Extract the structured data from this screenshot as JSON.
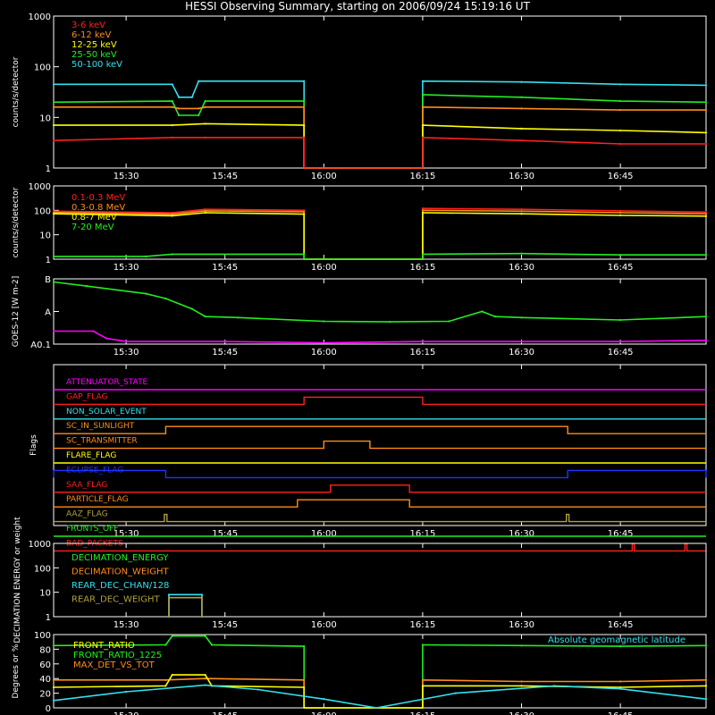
{
  "title": "HESSI Observing Summary, starting on 2006/09/24 15:19:16 UT",
  "time_ticks": [
    "15:30",
    "15:45",
    "16:00",
    "16:15",
    "16:30",
    "16:45"
  ],
  "colors": {
    "bg": "#000000",
    "axis": "#ffffff",
    "red": "#ff2020",
    "orange": "#ff8c1a",
    "yellow": "#ffff00",
    "green": "#22ee22",
    "cyan": "#33e0ee",
    "magenta": "#ff00ff",
    "blue": "#2233ff",
    "olive": "#b0a040"
  },
  "chart_data": [
    {
      "type": "line",
      "id": "lo-energy",
      "ylabel": "counts/s/detector",
      "y_scale": "log",
      "ylim": [
        1,
        1000
      ],
      "yticks": [
        "1",
        "10",
        "100",
        "1000"
      ],
      "legend": [
        {
          "name": "3-6 keV",
          "color": "red"
        },
        {
          "name": "6-12 keV",
          "color": "orange"
        },
        {
          "name": "12-25 keV",
          "color": "yellow"
        },
        {
          "name": "25-50 keV",
          "color": "green"
        },
        {
          "name": "50-100 keV",
          "color": "cyan"
        }
      ],
      "gaps": [
        [
          "15:57",
          "16:15"
        ]
      ],
      "series": [
        {
          "name": "50-100 keV",
          "color": "cyan",
          "x": [
            "15:19",
            "15:37",
            "15:38",
            "15:40",
            "15:41",
            "15:57",
            "16:15",
            "16:30",
            "16:45",
            "16:58"
          ],
          "values": [
            45,
            45,
            25,
            25,
            52,
            52,
            52,
            50,
            45,
            43
          ]
        },
        {
          "name": "25-50 keV",
          "color": "green",
          "x": [
            "15:19",
            "15:37",
            "15:38",
            "15:41",
            "15:42",
            "15:57",
            "16:15",
            "16:30",
            "16:45",
            "16:58"
          ],
          "values": [
            20,
            21,
            11,
            11,
            21,
            21,
            28,
            25,
            21,
            20
          ]
        },
        {
          "name": "6-12 keV",
          "color": "orange",
          "x": [
            "15:19",
            "15:37",
            "15:38",
            "15:41",
            "15:42",
            "15:57",
            "16:15",
            "16:30",
            "16:45",
            "16:58"
          ],
          "values": [
            16,
            16,
            15,
            15,
            16,
            16,
            16,
            15,
            14,
            14
          ]
        },
        {
          "name": "12-25 keV",
          "color": "yellow",
          "x": [
            "15:19",
            "15:37",
            "15:42",
            "15:57",
            "16:15",
            "16:30",
            "16:45",
            "16:58"
          ],
          "values": [
            7,
            7,
            7.5,
            7,
            7,
            6,
            5.5,
            5
          ]
        },
        {
          "name": "3-6 keV",
          "color": "red",
          "x": [
            "15:19",
            "15:37",
            "15:42",
            "15:57",
            "16:15",
            "16:30",
            "16:45",
            "16:58"
          ],
          "values": [
            3.5,
            4,
            4,
            4,
            4,
            3.5,
            3,
            3
          ]
        }
      ]
    },
    {
      "type": "line",
      "id": "hi-energy",
      "ylabel": "counts/s/detector",
      "y_scale": "log",
      "ylim": [
        1,
        1000
      ],
      "yticks": [
        "1",
        "10",
        "100",
        "1000"
      ],
      "legend": [
        {
          "name": "0.1-0.3 MeV",
          "color": "red"
        },
        {
          "name": "0.3-0.8 MeV",
          "color": "orange"
        },
        {
          "name": "0.8-7 MeV",
          "color": "yellow"
        },
        {
          "name": "7-20 MeV",
          "color": "green"
        }
      ],
      "gaps": [
        [
          "15:57",
          "16:15"
        ]
      ],
      "series": [
        {
          "name": "0.1-0.3 MeV",
          "color": "red",
          "x": [
            "15:19",
            "15:37",
            "15:42",
            "15:57",
            "16:15",
            "16:30",
            "16:45",
            "16:58"
          ],
          "values": [
            92,
            80,
            110,
            100,
            120,
            110,
            95,
            85
          ]
        },
        {
          "name": "0.3-0.8 MeV",
          "color": "orange",
          "x": [
            "15:19",
            "15:37",
            "15:42",
            "15:57",
            "16:15",
            "16:30",
            "16:45",
            "16:58"
          ],
          "values": [
            82,
            70,
            95,
            88,
            100,
            92,
            80,
            72
          ]
        },
        {
          "name": "0.8-7 MeV",
          "color": "yellow",
          "x": [
            "15:19",
            "15:37",
            "15:42",
            "15:57",
            "16:15",
            "16:30",
            "16:45",
            "16:58"
          ],
          "values": [
            72,
            60,
            80,
            70,
            80,
            72,
            62,
            58
          ]
        },
        {
          "name": "7-20 MeV",
          "color": "green",
          "x": [
            "15:19",
            "15:33",
            "15:37",
            "15:57",
            "16:15",
            "16:30",
            "16:45",
            "16:58"
          ],
          "values": [
            1.3,
            1.3,
            1.6,
            1.6,
            1.6,
            1.7,
            1.5,
            1.5
          ]
        }
      ]
    },
    {
      "type": "line",
      "id": "goes",
      "ylabel": "GOES-12 [W m-2]",
      "y_scale": "log",
      "ylim": [
        1e-08,
        1e-06
      ],
      "yticks": [
        "A0.1",
        "A",
        "B"
      ],
      "series": [
        {
          "name": "GOES long",
          "color": "green",
          "x": [
            "15:19",
            "15:24",
            "15:33",
            "15:36",
            "15:40",
            "15:42",
            "15:47",
            "16:00",
            "16:10",
            "16:19",
            "16:24",
            "16:26",
            "16:30",
            "16:45",
            "16:58"
          ],
          "values": [
            8e-07,
            6e-07,
            3.5e-07,
            2.5e-07,
            1.2e-07,
            7e-08,
            6.5e-08,
            5e-08,
            4.8e-08,
            5e-08,
            1e-07,
            7e-08,
            6.5e-08,
            5.5e-08,
            7e-08
          ]
        },
        {
          "name": "GOES short",
          "color": "magenta",
          "x": [
            "15:19",
            "15:25",
            "15:27",
            "15:30",
            "15:45",
            "16:00",
            "16:15",
            "16:30",
            "16:45",
            "16:58"
          ],
          "values": [
            2.5e-08,
            2.5e-08,
            1.5e-08,
            1.2e-08,
            1.2e-08,
            1.1e-08,
            1.2e-08,
            1.2e-08,
            1.2e-08,
            1.3e-08
          ]
        }
      ]
    },
    {
      "type": "line",
      "id": "flags",
      "ylabel": "Flags",
      "flags": [
        {
          "name": "ATTENUATOR_STATE",
          "color": "magenta",
          "on": []
        },
        {
          "name": "GAP_FLAG",
          "color": "red",
          "on": [
            [
              "15:57",
              "16:15"
            ]
          ]
        },
        {
          "name": "NON_SOLAR_EVENT",
          "color": "cyan",
          "on": []
        },
        {
          "name": "SC_IN_SUNLIGHT",
          "color": "orange",
          "on": [
            [
              "15:36",
              "16:37"
            ]
          ]
        },
        {
          "name": "SC_TRANSMITTER",
          "color": "orange",
          "on": [
            [
              "16:00",
              "16:07"
            ]
          ]
        },
        {
          "name": "FLARE_FLAG",
          "color": "yellow",
          "on": []
        },
        {
          "name": "ECLIPSE_FLAG",
          "color": "blue",
          "on": [
            [
              "15:19",
              "15:36"
            ],
            [
              "16:37",
              "16:58"
            ]
          ]
        },
        {
          "name": "SAA_FLAG",
          "color": "red",
          "on": [
            [
              "16:01",
              "16:13"
            ]
          ]
        },
        {
          "name": "PARTICLE_FLAG",
          "color": "orange",
          "on": [
            [
              "15:56",
              "16:13"
            ]
          ]
        },
        {
          "name": "AAZ_FLAG",
          "color": "olive",
          "on": [
            [
              "15:35.8",
              "15:36.2"
            ],
            [
              "16:36.8",
              "16:37.2"
            ]
          ]
        },
        {
          "name": "FRONTS_OFF",
          "color": "green",
          "on": []
        },
        {
          "name": "BAD_PACKETS",
          "color": "red",
          "on": [
            [
              "16:46.8",
              "16:47.1"
            ],
            [
              "16:54.8",
              "16:55.1"
            ]
          ]
        }
      ]
    },
    {
      "type": "line",
      "id": "decimation",
      "ylabel": "DECIMATION ENERGY or weight",
      "y_scale": "log",
      "ylim": [
        1,
        1000
      ],
      "yticks": [
        "1",
        "10",
        "100",
        "1000"
      ],
      "legend": [
        {
          "name": "DECIMATION_ENERGY",
          "color": "green"
        },
        {
          "name": "DECIMATION_WEIGHT",
          "color": "orange"
        },
        {
          "name": "REAR_DEC_CHAN/128",
          "color": "cyan"
        },
        {
          "name": "REAR_DEC_WEIGHT",
          "color": "olive"
        }
      ],
      "series": [
        {
          "name": "REAR_DEC_CHAN/128",
          "color": "cyan",
          "x": [
            "15:36.5",
            "15:36.5",
            "15:41.5",
            "15:41.5"
          ],
          "values": [
            1,
            8,
            8,
            1
          ]
        },
        {
          "name": "REAR_DEC_WEIGHT",
          "color": "olive",
          "x": [
            "15:36.5",
            "15:36.5",
            "15:41.5",
            "15:41.5"
          ],
          "values": [
            1,
            6,
            6,
            1
          ]
        }
      ]
    },
    {
      "type": "line",
      "id": "ratios",
      "ylabel": "Degrees or %",
      "ylim": [
        0,
        100
      ],
      "yticks": [
        "0",
        "20",
        "40",
        "60",
        "80",
        "100"
      ],
      "legend": [
        {
          "name": "FRONT_RATIO",
          "color": "yellow"
        },
        {
          "name": "FRONT_RATIO_1225",
          "color": "green"
        },
        {
          "name": "MAX_DET_VS_TOT",
          "color": "orange"
        }
      ],
      "note": "Absolute geomagnetic latitude",
      "gaps": [
        [
          "15:57",
          "16:15"
        ]
      ],
      "series": [
        {
          "name": "FRONT_RATIO_1225",
          "color": "green",
          "x": [
            "15:19",
            "15:36",
            "15:37",
            "15:42",
            "15:43",
            "15:57",
            "16:15",
            "16:30",
            "16:45",
            "16:58"
          ],
          "values": [
            85,
            86,
            98,
            98,
            86,
            84,
            86,
            85,
            84,
            85
          ]
        },
        {
          "name": "MAX_DET_VS_TOT",
          "color": "orange",
          "x": [
            "15:19",
            "15:36",
            "15:42",
            "15:57",
            "16:15",
            "16:30",
            "16:45",
            "16:58"
          ],
          "values": [
            38,
            38,
            40,
            38,
            38,
            36,
            36,
            38
          ]
        },
        {
          "name": "FRONT_RATIO",
          "color": "yellow",
          "x": [
            "15:19",
            "15:36",
            "15:37",
            "15:42",
            "15:43",
            "15:57",
            "16:15",
            "16:30",
            "16:45",
            "16:58"
          ],
          "values": [
            28,
            30,
            45,
            45,
            30,
            28,
            30,
            30,
            28,
            30
          ]
        },
        {
          "name": "Absolute geomagnetic latitude",
          "color": "cyan",
          "x": [
            "15:19",
            "15:30",
            "15:42",
            "15:50",
            "16:00",
            "16:08",
            "16:20",
            "16:35",
            "16:45",
            "16:58"
          ],
          "values": [
            10,
            22,
            31,
            25,
            12,
            0,
            20,
            30,
            26,
            12
          ]
        }
      ]
    }
  ]
}
